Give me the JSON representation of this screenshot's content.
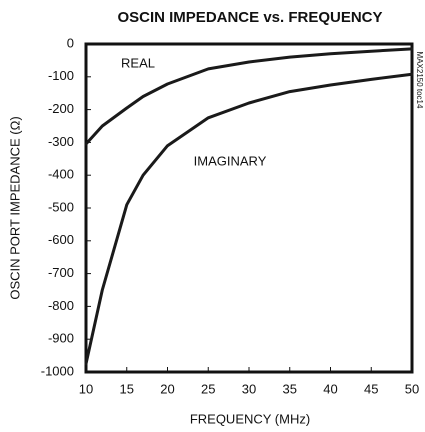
{
  "chart_data": {
    "type": "line",
    "title": "OSCIN IMPEDANCE vs. FREQUENCY",
    "xlabel": "FREQUENCY (MHz)",
    "ylabel": "OSCIN PORT IMPEDANCE (Ω)",
    "side_note": "MAX2150 toc14",
    "x": [
      10,
      12,
      15,
      17,
      20,
      25,
      30,
      35,
      40,
      45,
      50
    ],
    "series": [
      {
        "name": "REAL",
        "color": "#1a1a1a",
        "values": [
          -305,
          -250,
          -195,
          -160,
          -122,
          -76,
          -55,
          -40,
          -30,
          -22,
          -15
        ]
      },
      {
        "name": "IMAGINARY",
        "color": "#1a1a1a",
        "values": [
          -975,
          -750,
          -490,
          -400,
          -310,
          -225,
          -180,
          -145,
          -125,
          -108,
          -92
        ]
      }
    ],
    "xlim": [
      10,
      50
    ],
    "xticks": [
      10,
      15,
      20,
      25,
      30,
      35,
      40,
      45,
      50
    ],
    "ylim": [
      -1000,
      0
    ],
    "yticks": [
      0,
      -100,
      -200,
      -300,
      -400,
      -500,
      -600,
      -700,
      -800,
      -900,
      -1000
    ],
    "grid": false
  }
}
